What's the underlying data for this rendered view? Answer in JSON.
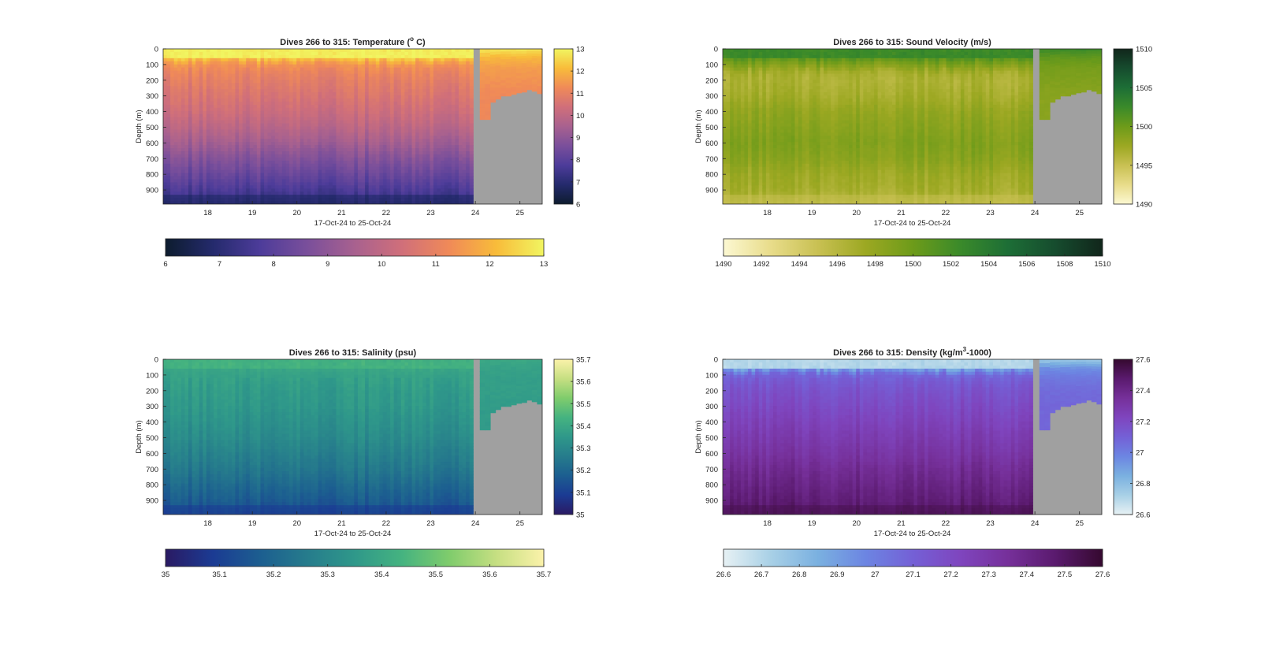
{
  "figure": {
    "background": "#ffffff",
    "no_data_color": "#a0a0a0"
  },
  "chart_data": [
    {
      "type": "heatmap",
      "id": "temperature",
      "title": "Dives 266 to 315: Temperature (",
      "title_sup": "o",
      "title_tail": " C)",
      "xlabel": "17-Oct-24 to 25-Oct-24",
      "ylabel": "Depth (m)",
      "xlim": [
        17.0,
        25.5
      ],
      "ylim": [
        0,
        990
      ],
      "y_reversed": true,
      "xticks": [
        "18",
        "19",
        "20",
        "21",
        "22",
        "23",
        "24",
        "25"
      ],
      "yticks": [
        "0",
        "100",
        "200",
        "300",
        "400",
        "500",
        "600",
        "700",
        "800",
        "900"
      ],
      "clim": [
        6,
        13
      ],
      "colormap": [
        "#0d1c2e",
        "#242a6c",
        "#4d3c9a",
        "#7a4f9b",
        "#a8618f",
        "#d06f7a",
        "#f08a58",
        "#f8bc3a",
        "#f1f561"
      ],
      "colorbar_ticks": [
        "6",
        "7",
        "8",
        "9",
        "10",
        "11",
        "12",
        "13"
      ],
      "h_colorbar_ticks": [
        "6",
        "7",
        "8",
        "9",
        "10",
        "11",
        "12",
        "13"
      ],
      "profile_depth_m": [
        0,
        50,
        100,
        150,
        200,
        300,
        400,
        500,
        600,
        700,
        800,
        900,
        990
      ],
      "profile_values": [
        12.9,
        12.5,
        11.4,
        11.1,
        10.9,
        10.6,
        10.3,
        9.9,
        9.4,
        8.8,
        8.3,
        7.7,
        7.2
      ],
      "surface_value": 12.9,
      "deep_extreme": 6.6,
      "gap_days": [
        23.95,
        24.1
      ],
      "late_profile_values": [
        12.8,
        12.0,
        11.6,
        11.4,
        11.2
      ]
    },
    {
      "type": "heatmap",
      "id": "sound_velocity",
      "title": "Dives 266 to 315: Sound Velocity (m/s)",
      "title_sup": "",
      "title_tail": "",
      "xlabel": "17-Oct-24 to 25-Oct-24",
      "ylabel": "Depth (m)",
      "xlim": [
        17.0,
        25.5
      ],
      "ylim": [
        0,
        990
      ],
      "y_reversed": true,
      "xticks": [
        "18",
        "19",
        "20",
        "21",
        "22",
        "23",
        "24",
        "25"
      ],
      "yticks": [
        "0",
        "100",
        "200",
        "300",
        "400",
        "500",
        "600",
        "700",
        "800",
        "900"
      ],
      "clim": [
        1490,
        1510
      ],
      "colormap": [
        "#fcf8d2",
        "#e8dc8a",
        "#c8c052",
        "#9ca822",
        "#6d9b1a",
        "#3a8a2a",
        "#1d6e36",
        "#164c2e",
        "#11261b"
      ],
      "colorbar_ticks": [
        "1490",
        "1495",
        "1500",
        "1505",
        "1510"
      ],
      "h_colorbar_ticks": [
        "1490",
        "1492",
        "1494",
        "1496",
        "1498",
        "1500",
        "1502",
        "1504",
        "1506",
        "1508",
        "1510"
      ],
      "profile_depth_m": [
        0,
        50,
        100,
        150,
        200,
        300,
        400,
        500,
        600,
        700,
        800,
        900,
        990
      ],
      "profile_values": [
        1502.0,
        1501.5,
        1499.0,
        1497.0,
        1496.5,
        1497.0,
        1498.0,
        1498.5,
        1499.0,
        1498.5,
        1497.5,
        1497.0,
        1496.0
      ],
      "surface_value": 1502.5,
      "deep_extreme": 1495.0,
      "gap_days": [
        23.95,
        24.1
      ],
      "late_profile_values": [
        1502.5,
        1500.5,
        1499.5,
        1499.0,
        1498.5
      ]
    },
    {
      "type": "heatmap",
      "id": "salinity",
      "title": "Dives 266 to 315: Salinity (psu)",
      "title_sup": "",
      "title_tail": "",
      "xlabel": "17-Oct-24 to 25-Oct-24",
      "ylabel": "Depth (m)",
      "xlim": [
        17.0,
        25.5
      ],
      "ylim": [
        0,
        990
      ],
      "y_reversed": true,
      "xticks": [
        "18",
        "19",
        "20",
        "21",
        "22",
        "23",
        "24",
        "25"
      ],
      "yticks": [
        "0",
        "100",
        "200",
        "300",
        "400",
        "500",
        "600",
        "700",
        "800",
        "900"
      ],
      "clim": [
        35.0,
        35.7
      ],
      "colormap": [
        "#2a1a63",
        "#1b3b93",
        "#1c5e90",
        "#267c8c",
        "#2f988a",
        "#45b380",
        "#7fcc6c",
        "#c6df82",
        "#fbf2aa"
      ],
      "colorbar_ticks": [
        "35",
        "35.1",
        "35.2",
        "35.3",
        "35.4",
        "35.5",
        "35.6",
        "35.7"
      ],
      "h_colorbar_ticks": [
        "35",
        "35.1",
        "35.2",
        "35.3",
        "35.4",
        "35.5",
        "35.6",
        "35.7"
      ],
      "profile_depth_m": [
        0,
        50,
        100,
        150,
        200,
        300,
        400,
        500,
        600,
        700,
        800,
        900,
        990
      ],
      "profile_values": [
        35.42,
        35.4,
        35.38,
        35.37,
        35.36,
        35.35,
        35.33,
        35.31,
        35.28,
        35.25,
        35.21,
        35.17,
        35.13
      ],
      "surface_value": 35.43,
      "deep_extreme": 35.08,
      "gap_days": [
        23.95,
        24.1
      ],
      "late_profile_values": [
        35.4,
        35.38,
        35.37,
        35.37,
        35.36
      ]
    },
    {
      "type": "heatmap",
      "id": "density",
      "title": "Dives 266 to 315: Density (kg/m",
      "title_sup": "3",
      "title_tail": "-1000)",
      "xlabel": "17-Oct-24 to 25-Oct-24",
      "ylabel": "Depth (m)",
      "xlim": [
        17.0,
        25.5
      ],
      "ylim": [
        0,
        990
      ],
      "y_reversed": true,
      "xticks": [
        "18",
        "19",
        "20",
        "21",
        "22",
        "23",
        "24",
        "25"
      ],
      "yticks": [
        "0",
        "100",
        "200",
        "300",
        "400",
        "500",
        "600",
        "700",
        "800",
        "900"
      ],
      "clim": [
        26.6,
        27.6
      ],
      "colormap": [
        "#e7f1f4",
        "#a8d0e6",
        "#7ab0e0",
        "#6c85e2",
        "#7460d6",
        "#7f45be",
        "#76309a",
        "#5a1a6e",
        "#35092f"
      ],
      "colorbar_ticks": [
        "26.6",
        "26.8",
        "27",
        "27.2",
        "27.4",
        "27.6"
      ],
      "h_colorbar_ticks": [
        "26.6",
        "26.7",
        "26.8",
        "26.9",
        "27",
        "27.1",
        "27.2",
        "27.3",
        "27.4",
        "27.5",
        "27.6"
      ],
      "profile_depth_m": [
        0,
        50,
        100,
        150,
        200,
        300,
        400,
        500,
        600,
        700,
        800,
        900,
        990
      ],
      "profile_values": [
        26.72,
        26.85,
        27.08,
        27.13,
        27.16,
        27.2,
        27.24,
        27.28,
        27.32,
        27.37,
        27.41,
        27.45,
        27.49
      ],
      "surface_value": 26.7,
      "deep_extreme": 27.54,
      "gap_days": [
        23.95,
        24.1
      ],
      "late_profile_values": [
        26.75,
        26.95,
        27.02,
        27.06,
        27.08
      ]
    }
  ],
  "dive_coverage": {
    "early_dive_day_range": [
      17.0,
      23.95
    ],
    "late_dive_day_range": [
      24.1,
      25.5
    ],
    "late_max_depth_m": [
      450,
      450,
      340,
      320,
      300,
      300,
      290,
      280,
      275,
      260,
      270,
      285
    ]
  }
}
